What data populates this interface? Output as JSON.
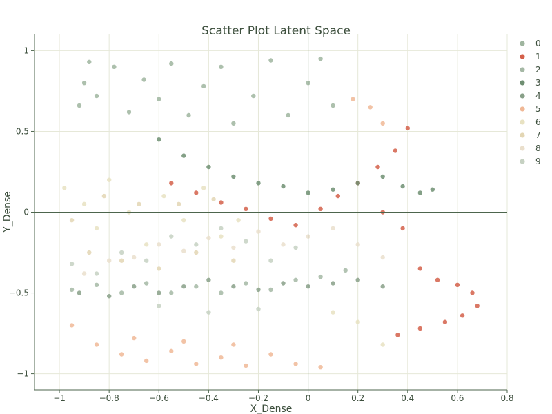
{
  "chart_data": {
    "type": "scatter",
    "title": "Scatter Plot Latent Space",
    "xlabel": "X_Dense",
    "ylabel": "Y_Dense",
    "xlim": [
      -1.1,
      0.8
    ],
    "ylim": [
      -1.1,
      1.1
    ],
    "x_ticks": [
      -1,
      -0.8,
      -0.6,
      -0.4,
      -0.2,
      0,
      0.2,
      0.4,
      0.6,
      0.8
    ],
    "x_tick_labels": [
      "−1",
      "−0.8",
      "−0.6",
      "−0.4",
      "−0.2",
      "0",
      "0.2",
      "0.4",
      "0.6",
      "0.8"
    ],
    "y_ticks": [
      -1,
      -0.5,
      0,
      0.5,
      1
    ],
    "y_tick_labels": [
      "−1",
      "−0.5",
      "0",
      "0.5",
      "1"
    ],
    "grid": true,
    "legend_position": "top-right",
    "series": [
      {
        "name": "0",
        "color": "#9fb59f",
        "values": [
          [
            -0.92,
            0.66
          ],
          [
            -0.9,
            0.8
          ],
          [
            -0.88,
            0.93
          ],
          [
            -0.85,
            0.72
          ],
          [
            -0.78,
            0.9
          ],
          [
            -0.72,
            0.62
          ],
          [
            -0.66,
            0.82
          ],
          [
            -0.6,
            0.7
          ],
          [
            -0.55,
            0.92
          ],
          [
            -0.48,
            0.6
          ],
          [
            -0.42,
            0.78
          ],
          [
            -0.35,
            0.9
          ],
          [
            -0.3,
            0.55
          ],
          [
            -0.22,
            0.72
          ],
          [
            -0.15,
            0.94
          ],
          [
            -0.08,
            0.6
          ],
          [
            0.0,
            0.8
          ],
          [
            0.05,
            0.95
          ],
          [
            0.1,
            0.66
          ]
        ]
      },
      {
        "name": "1",
        "color": "#d4604a",
        "values": [
          [
            -0.55,
            0.18
          ],
          [
            -0.45,
            0.12
          ],
          [
            -0.35,
            0.06
          ],
          [
            -0.25,
            0.02
          ],
          [
            -0.15,
            -0.04
          ],
          [
            -0.05,
            -0.08
          ],
          [
            0.05,
            0.02
          ],
          [
            0.12,
            0.1
          ],
          [
            0.2,
            0.18
          ],
          [
            0.28,
            0.28
          ],
          [
            0.35,
            0.38
          ],
          [
            0.4,
            0.52
          ],
          [
            0.45,
            -0.35
          ],
          [
            0.52,
            -0.42
          ],
          [
            0.6,
            -0.45
          ],
          [
            0.66,
            -0.5
          ],
          [
            0.68,
            -0.58
          ],
          [
            0.62,
            -0.64
          ],
          [
            0.55,
            -0.68
          ],
          [
            0.45,
            -0.72
          ],
          [
            0.36,
            -0.76
          ],
          [
            0.3,
            -0.0
          ],
          [
            0.38,
            -0.1
          ]
        ]
      },
      {
        "name": "2",
        "color": "#a5b8a5",
        "values": [
          [
            -0.95,
            -0.48
          ],
          [
            -0.85,
            -0.45
          ],
          [
            -0.75,
            -0.5
          ],
          [
            -0.65,
            -0.44
          ],
          [
            -0.55,
            -0.5
          ],
          [
            -0.45,
            -0.46
          ],
          [
            -0.35,
            -0.5
          ],
          [
            -0.25,
            -0.44
          ],
          [
            -0.15,
            -0.48
          ],
          [
            -0.05,
            -0.42
          ],
          [
            0.05,
            -0.4
          ],
          [
            0.15,
            -0.36
          ]
        ]
      },
      {
        "name": "3",
        "color": "#6f8f72",
        "values": [
          [
            -0.6,
            0.45
          ],
          [
            -0.5,
            0.35
          ],
          [
            -0.4,
            0.28
          ],
          [
            -0.3,
            0.22
          ],
          [
            -0.2,
            0.18
          ],
          [
            -0.1,
            0.16
          ],
          [
            0.0,
            0.12
          ],
          [
            0.1,
            0.14
          ],
          [
            0.2,
            0.18
          ],
          [
            0.3,
            0.22
          ],
          [
            0.38,
            0.16
          ],
          [
            0.45,
            0.12
          ],
          [
            0.5,
            0.14
          ]
        ]
      },
      {
        "name": "4",
        "color": "#88a088",
        "values": [
          [
            -0.92,
            -0.5
          ],
          [
            -0.8,
            -0.52
          ],
          [
            -0.7,
            -0.46
          ],
          [
            -0.6,
            -0.5
          ],
          [
            -0.5,
            -0.46
          ],
          [
            -0.4,
            -0.42
          ],
          [
            -0.3,
            -0.46
          ],
          [
            -0.2,
            -0.48
          ],
          [
            -0.1,
            -0.44
          ],
          [
            0.0,
            -0.46
          ],
          [
            0.1,
            -0.44
          ],
          [
            0.2,
            -0.42
          ],
          [
            0.3,
            -0.46
          ]
        ]
      },
      {
        "name": "5",
        "color": "#f0b896",
        "values": [
          [
            -0.95,
            -0.7
          ],
          [
            -0.85,
            -0.82
          ],
          [
            -0.75,
            -0.88
          ],
          [
            -0.65,
            -0.92
          ],
          [
            -0.55,
            -0.86
          ],
          [
            -0.45,
            -0.94
          ],
          [
            -0.35,
            -0.9
          ],
          [
            -0.25,
            -0.95
          ],
          [
            -0.15,
            -0.88
          ],
          [
            -0.05,
            -0.94
          ],
          [
            0.05,
            -0.96
          ],
          [
            -0.7,
            -0.78
          ],
          [
            -0.5,
            -0.8
          ],
          [
            -0.3,
            -0.82
          ],
          [
            0.3,
            0.55
          ],
          [
            0.25,
            0.65
          ],
          [
            0.18,
            0.7
          ]
        ]
      },
      {
        "name": "6",
        "color": "#e8e2c2",
        "values": [
          [
            -0.98,
            0.15
          ],
          [
            -0.9,
            0.05
          ],
          [
            -0.85,
            -0.1
          ],
          [
            -0.8,
            0.2
          ],
          [
            -0.72,
            0.0
          ],
          [
            -0.65,
            -0.2
          ],
          [
            -0.58,
            0.1
          ],
          [
            -0.5,
            -0.05
          ],
          [
            -0.42,
            0.15
          ],
          [
            -0.35,
            -0.15
          ],
          [
            -0.28,
            -0.05
          ],
          [
            0.1,
            -0.62
          ],
          [
            0.2,
            -0.68
          ],
          [
            0.3,
            -0.82
          ]
        ]
      },
      {
        "name": "7",
        "color": "#e3d6b4",
        "values": [
          [
            -0.95,
            -0.05
          ],
          [
            -0.88,
            -0.25
          ],
          [
            -0.82,
            0.1
          ],
          [
            -0.75,
            -0.3
          ],
          [
            -0.68,
            0.05
          ],
          [
            -0.6,
            -0.35
          ],
          [
            -0.52,
            0.05
          ],
          [
            -0.45,
            -0.25
          ],
          [
            -0.38,
            0.08
          ],
          [
            -0.3,
            -0.3
          ]
        ]
      },
      {
        "name": "8",
        "color": "#eadfcc",
        "values": [
          [
            -0.9,
            -0.38
          ],
          [
            -0.8,
            -0.3
          ],
          [
            -0.7,
            -0.28
          ],
          [
            -0.6,
            -0.2
          ],
          [
            -0.5,
            -0.24
          ],
          [
            -0.4,
            -0.16
          ],
          [
            -0.3,
            -0.22
          ],
          [
            -0.2,
            -0.12
          ],
          [
            -0.1,
            -0.2
          ],
          [
            0.0,
            -0.15
          ],
          [
            0.1,
            -0.1
          ],
          [
            0.2,
            -0.2
          ],
          [
            0.3,
            -0.28
          ]
        ]
      },
      {
        "name": "9",
        "color": "#c6d1c2",
        "values": [
          [
            -0.95,
            -0.32
          ],
          [
            -0.85,
            -0.38
          ],
          [
            -0.75,
            -0.25
          ],
          [
            -0.65,
            -0.3
          ],
          [
            -0.55,
            -0.15
          ],
          [
            -0.45,
            -0.2
          ],
          [
            -0.35,
            -0.1
          ],
          [
            -0.25,
            -0.18
          ],
          [
            -0.15,
            -0.3
          ],
          [
            -0.05,
            -0.22
          ],
          [
            -0.6,
            -0.58
          ],
          [
            -0.4,
            -0.62
          ],
          [
            -0.2,
            -0.6
          ]
        ]
      }
    ]
  }
}
